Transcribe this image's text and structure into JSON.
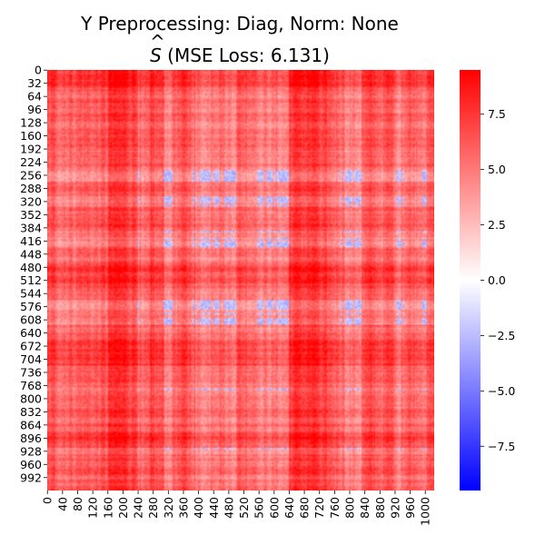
{
  "chart_data": {
    "type": "heatmap",
    "title_line1": "Y Preprocessing: Diag, Norm: None",
    "title_line2_pre": "",
    "title_line2_symbol": "S",
    "title_line2_hat": "^",
    "title_line2_post": " (MSE Loss: 6.131)",
    "matrix_size": 1024,
    "x_tick_labels": [
      "0",
      "40",
      "80",
      "120",
      "160",
      "200",
      "240",
      "280",
      "320",
      "360",
      "400",
      "440",
      "480",
      "520",
      "560",
      "600",
      "640",
      "680",
      "720",
      "760",
      "800",
      "840",
      "880",
      "920",
      "960",
      "1000"
    ],
    "x_tick_values": [
      0,
      40,
      80,
      120,
      160,
      200,
      240,
      280,
      320,
      360,
      400,
      440,
      480,
      520,
      560,
      600,
      640,
      680,
      720,
      760,
      800,
      840,
      880,
      920,
      960,
      1000
    ],
    "y_tick_labels": [
      "0",
      "32",
      "64",
      "96",
      "128",
      "160",
      "192",
      "224",
      "256",
      "288",
      "320",
      "352",
      "384",
      "416",
      "448",
      "480",
      "512",
      "544",
      "576",
      "608",
      "640",
      "672",
      "704",
      "736",
      "768",
      "800",
      "832",
      "864",
      "896",
      "928",
      "960",
      "992"
    ],
    "y_tick_values": [
      0,
      32,
      64,
      96,
      128,
      160,
      192,
      224,
      256,
      288,
      320,
      352,
      384,
      416,
      448,
      480,
      512,
      544,
      576,
      608,
      640,
      672,
      704,
      736,
      768,
      800,
      832,
      864,
      896,
      928,
      960,
      992
    ],
    "colorbar": {
      "min": -9.5,
      "max": 9.5,
      "tick_values": [
        7.5,
        5.0,
        2.5,
        0.0,
        -2.5,
        -5.0,
        -7.5
      ],
      "tick_labels": [
        "7.5",
        "5.0",
        "2.5",
        "0.0",
        "−2.5",
        "−5.0",
        "−7.5"
      ],
      "colormap": "bwr",
      "color_low": "#0000ff",
      "color_mid": "#ffffff",
      "color_high": "#ff0000"
    }
  }
}
